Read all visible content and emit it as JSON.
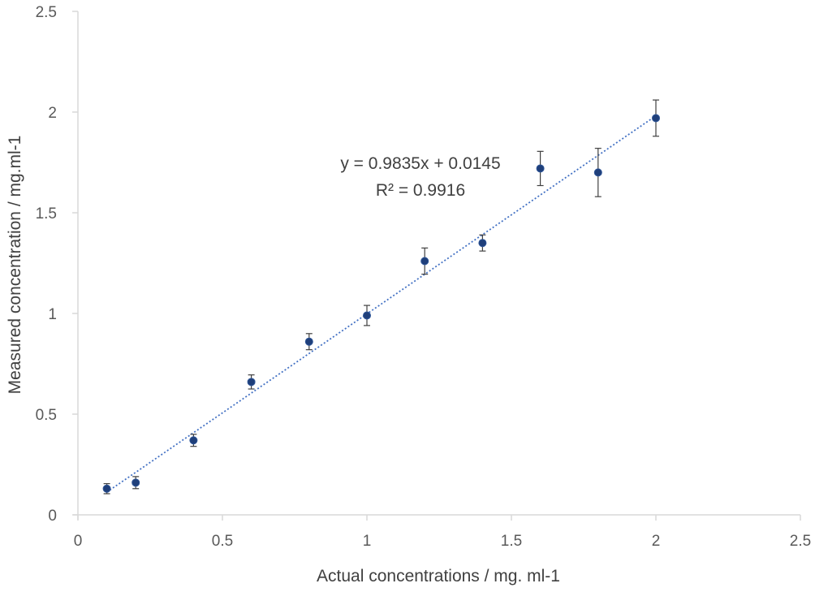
{
  "chart_data": {
    "type": "scatter",
    "title": "",
    "xlabel": "Actual concentrations / mg. ml-1",
    "ylabel": "Measured concentration / mg.ml-1",
    "xlim": [
      0,
      2.5
    ],
    "ylim": [
      0,
      2.5
    ],
    "xticks": [
      "0",
      "0.5",
      "1",
      "1.5",
      "2",
      "2.5"
    ],
    "yticks": [
      "0",
      "0.5",
      "1",
      "1.5",
      "2",
      "2.5"
    ],
    "grid": false,
    "legend": "none",
    "series": [
      {
        "x": [
          0.1,
          0.2,
          0.4,
          0.6,
          0.8,
          1.0,
          1.2,
          1.4,
          1.6,
          1.8,
          2.0
        ],
        "y": [
          0.13,
          0.16,
          0.37,
          0.66,
          0.86,
          0.99,
          1.26,
          1.35,
          1.72,
          1.7,
          1.97
        ],
        "error": [
          0.025,
          0.03,
          0.03,
          0.035,
          0.04,
          0.05,
          0.065,
          0.04,
          0.085,
          0.12,
          0.09
        ],
        "color": "#1f3f7a"
      }
    ],
    "trendline": {
      "slope": 0.9835,
      "intercept": 0.0145,
      "x_range": [
        0.1,
        2.0
      ],
      "style": "dotted",
      "color": "#4472c4",
      "equation": "y = 0.9835x + 0.0145",
      "r2_text": "R² = 0.9916"
    },
    "axis_color": "#d9d9d9"
  }
}
